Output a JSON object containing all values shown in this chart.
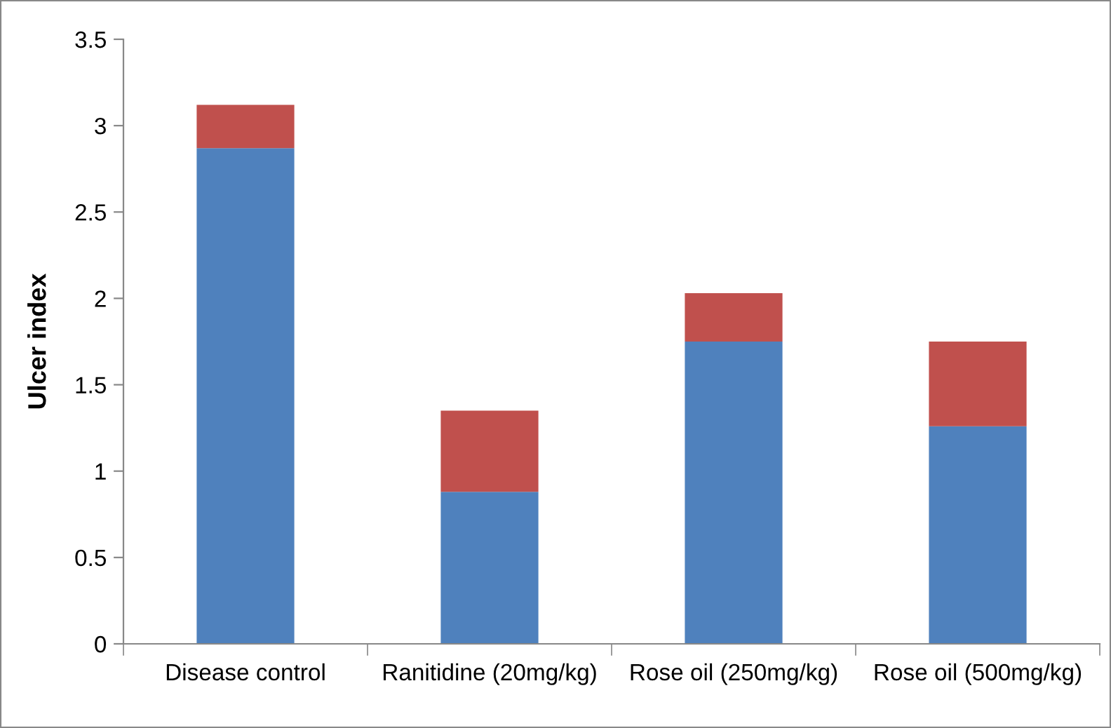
{
  "chart_data": {
    "type": "bar",
    "stacked": true,
    "ylabel": "Ulcer index",
    "categories": [
      "Disease control",
      "Ranitidine (20mg/kg)",
      "Rose oil (250mg/kg)",
      "Rose oil (500mg/kg)"
    ],
    "series": [
      {
        "color": "#4f81bd",
        "values": [
          2.87,
          0.88,
          1.75,
          1.26
        ]
      },
      {
        "color": "#c0504d",
        "values": [
          0.25,
          0.47,
          0.28,
          0.49
        ]
      }
    ],
    "ylim": [
      0,
      3.5
    ],
    "yticks": [
      0,
      0.5,
      1,
      1.5,
      2,
      2.5,
      3,
      3.5
    ],
    "grid": false,
    "legend": false
  }
}
